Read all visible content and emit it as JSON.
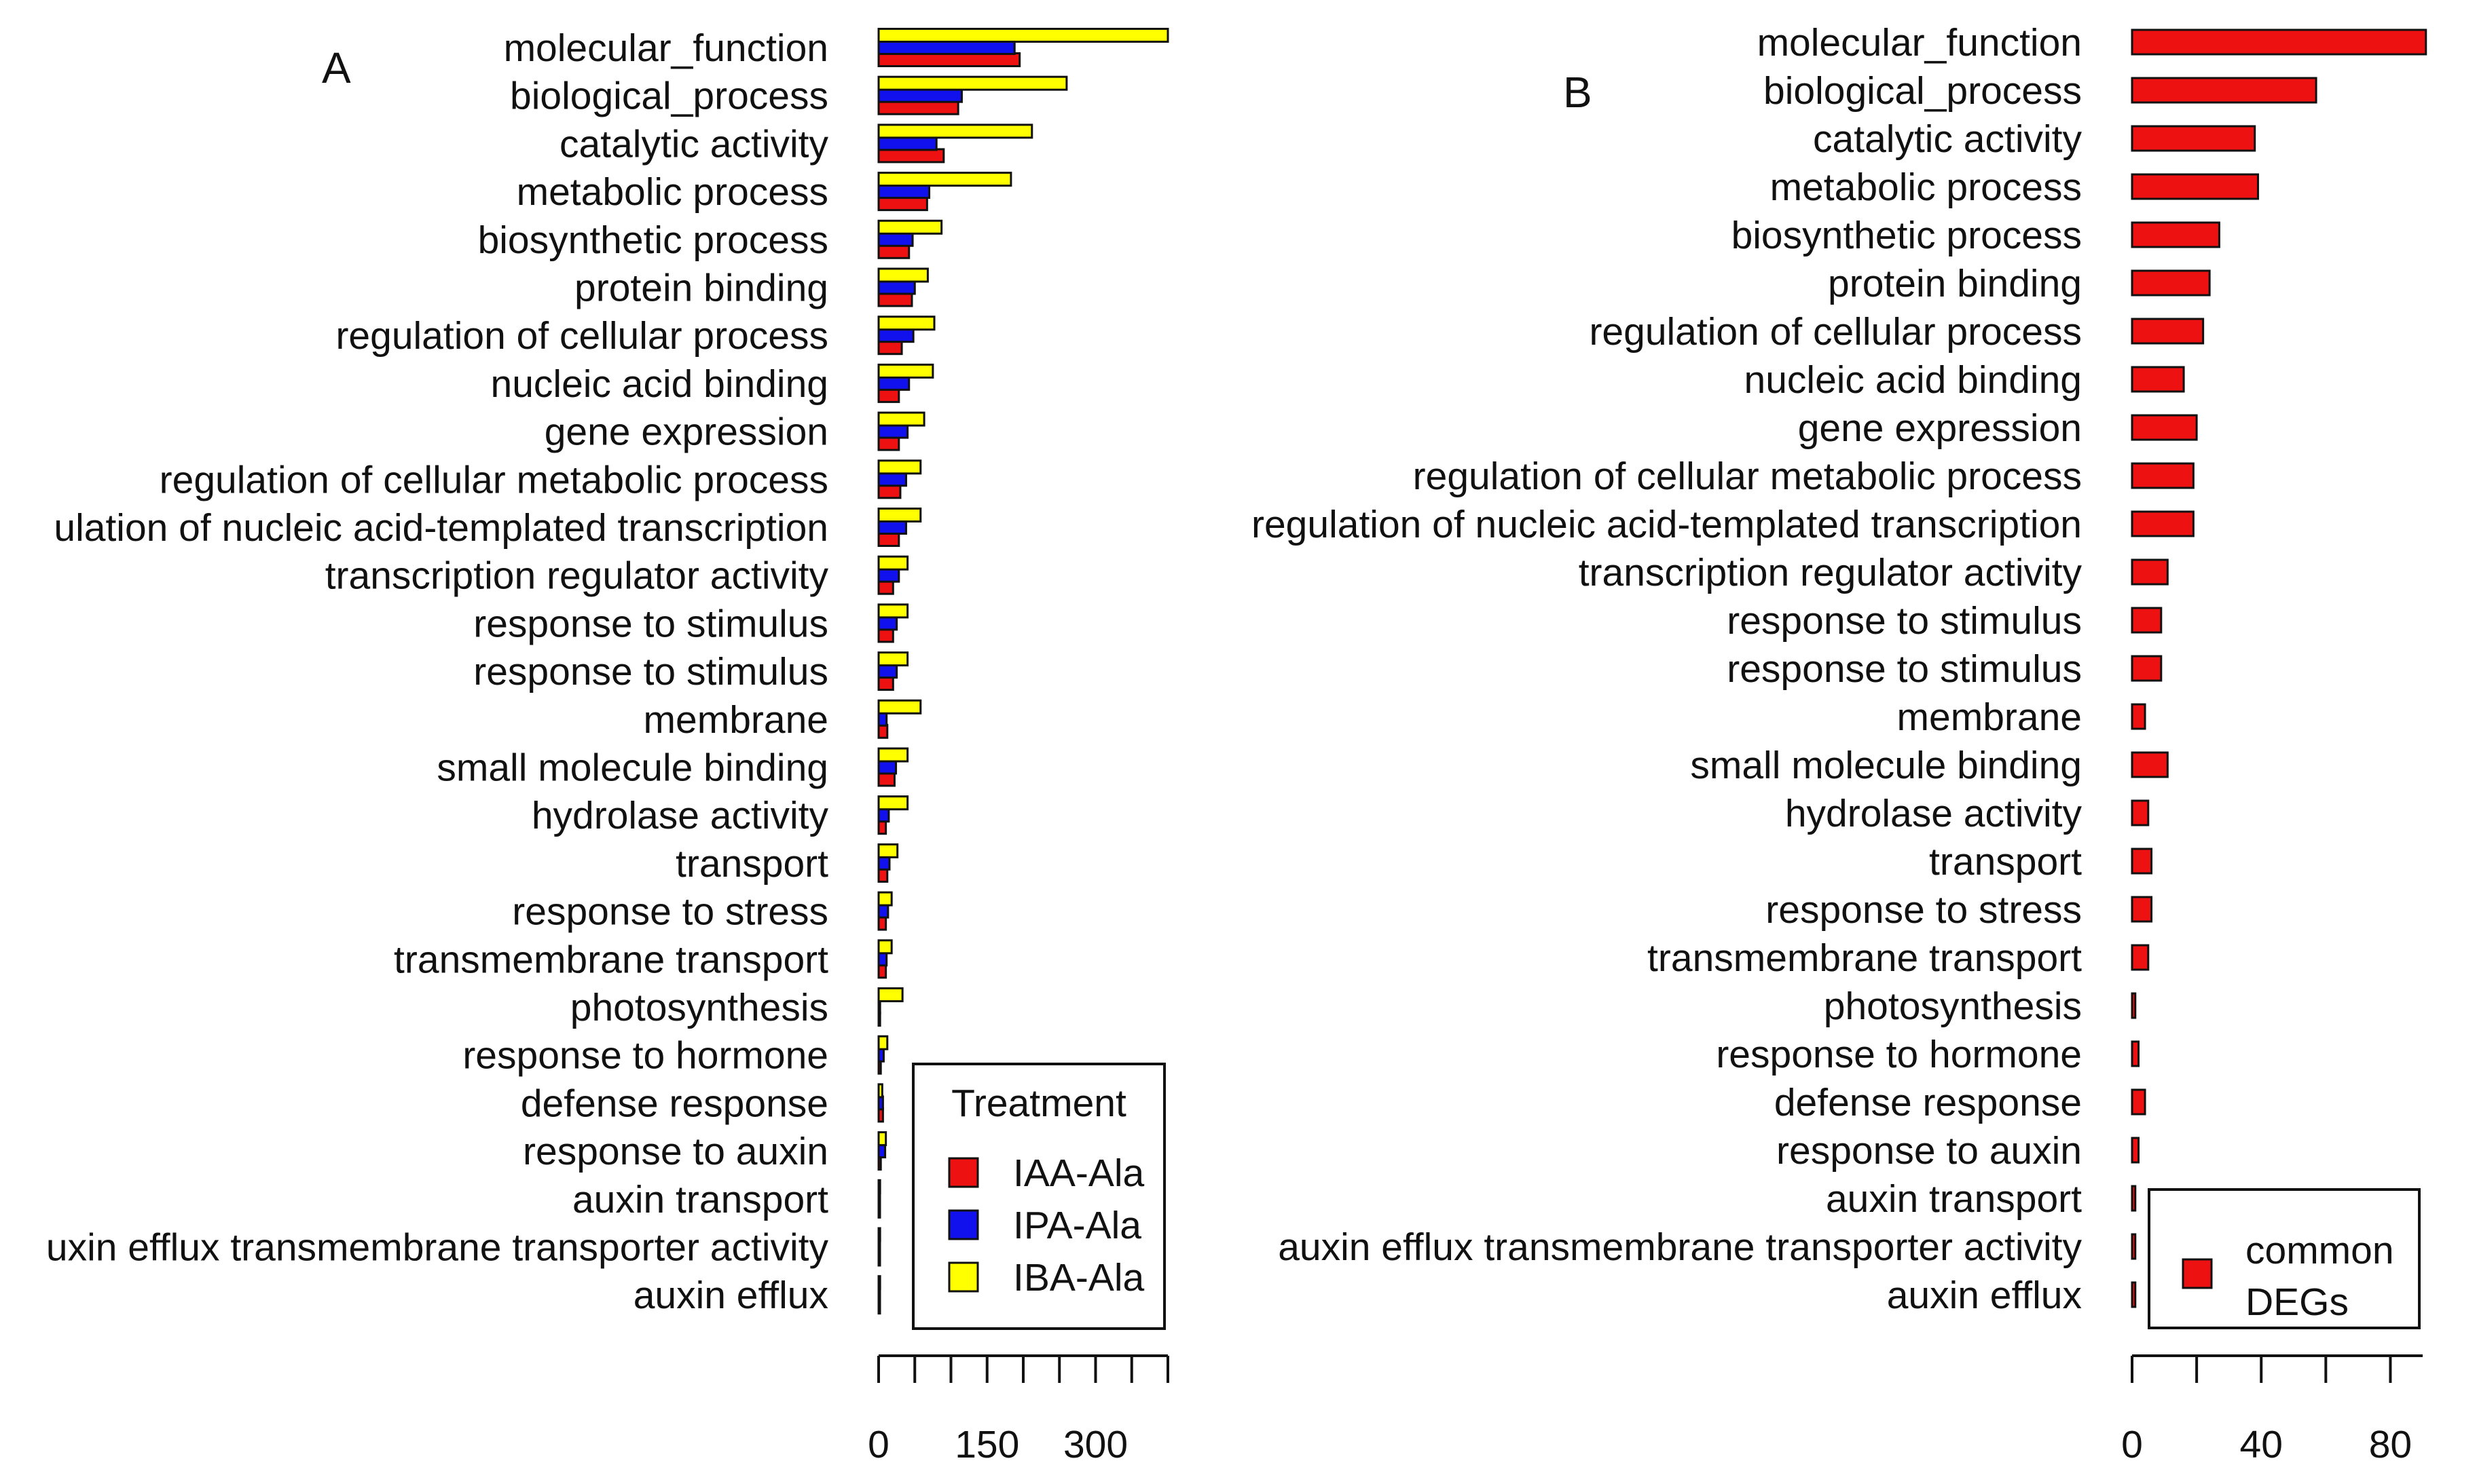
{
  "chart_data": [
    {
      "type": "bar",
      "orientation": "horizontal",
      "panel_label": "A",
      "categories": [
        "molecular_function",
        "biological_process",
        "catalytic activity",
        "metabolic process",
        "biosynthetic process",
        "protein binding",
        "regulation of cellular process",
        "nucleic acid binding",
        "gene expression",
        "regulation of cellular metabolic process",
        "regulation of nucleic acid-templated transcription",
        "transcription regulator activity",
        "response to stimulus",
        "response to stimulus",
        "membrane",
        "small molecule binding",
        "hydrolase activity",
        "transport",
        "response to stress",
        "transmembrane transport",
        "photosynthesis",
        "response to hormone",
        "defense response",
        "response to auxin",
        "auxin transport",
        "auxin efflux transmembrane transporter activity",
        "auxin efflux"
      ],
      "category_labels_shown": [
        "molecular_function",
        "biological_process",
        "catalytic activity",
        "metabolic process",
        "biosynthetic process",
        "protein binding",
        "regulation of cellular process",
        "nucleic acid binding",
        "gene expression",
        "regulation of cellular metabolic process",
        "ulation of nucleic acid-templated transcription",
        "transcription regulator activity",
        "response to stimulus",
        "response to stimulus",
        "membrane",
        "small molecule binding",
        "hydrolase activity",
        "transport",
        "response to stress",
        "transmembrane transport",
        "photosynthesis",
        "response to hormone",
        "defense response",
        "response to auxin",
        "auxin transport",
        "uxin efflux transmembrane transporter activity",
        "auxin efflux"
      ],
      "series": [
        {
          "name": "IAA-Ala",
          "color": "#ee1111",
          "values": [
            195,
            110,
            90,
            67,
            42,
            46,
            32,
            28,
            28,
            30,
            28,
            20,
            20,
            20,
            12,
            22,
            10,
            12,
            10,
            10,
            2,
            3,
            6,
            3,
            1,
            1,
            1
          ]
        },
        {
          "name": "IPA-Ala",
          "color": "#1111ee",
          "values": [
            188,
            115,
            80,
            70,
            47,
            50,
            48,
            42,
            40,
            38,
            38,
            28,
            25,
            25,
            11,
            24,
            14,
            15,
            13,
            11,
            2,
            7,
            6,
            9,
            1,
            1,
            1
          ]
        },
        {
          "name": "IBA-Ala",
          "color": "#ffff00",
          "values": [
            400,
            260,
            212,
            183,
            87,
            68,
            77,
            75,
            63,
            58,
            58,
            40,
            40,
            40,
            58,
            40,
            40,
            26,
            18,
            18,
            33,
            12,
            5,
            10,
            2,
            2,
            2
          ]
        }
      ],
      "xlim": [
        0,
        400
      ],
      "xticks_labeled": [
        0,
        150,
        300
      ],
      "xtick_step": 50,
      "xlabel": "",
      "ylabel": "",
      "legend": {
        "title": "Treatment",
        "position": "bottom-right",
        "entries": [
          "IAA-Ala",
          "IPA-Ala",
          "IBA-Ala"
        ]
      }
    },
    {
      "type": "bar",
      "orientation": "horizontal",
      "panel_label": "B",
      "categories": [
        "molecular_function",
        "biological_process",
        "catalytic activity",
        "metabolic process",
        "biosynthetic process",
        "protein binding",
        "regulation of cellular process",
        "nucleic acid binding",
        "gene expression",
        "regulation of cellular metabolic process",
        "regulation of nucleic acid-templated transcription",
        "transcription regulator activity",
        "response to stimulus",
        "response to stimulus",
        "membrane",
        "small molecule binding",
        "hydrolase activity",
        "transport",
        "response to stress",
        "transmembrane transport",
        "photosynthesis",
        "response to hormone",
        "defense response",
        "response to auxin",
        "auxin transport",
        "auxin efflux transmembrane transporter activity",
        "auxin efflux"
      ],
      "category_labels_shown": [
        "molecular_function",
        "biological_process",
        "catalytic activity",
        "metabolic process",
        "biosynthetic process",
        "protein binding",
        "regulation of cellular process",
        "nucleic acid binding",
        "gene expression",
        "regulation of cellular metabolic process",
        "regulation of nucleic acid-templated transcription",
        "transcription regulator activity",
        "response to stimulus",
        "response to stimulus",
        "membrane",
        "small molecule binding",
        "hydrolase activity",
        "transport",
        "response to stress",
        "transmembrane transport",
        "photosynthesis",
        "response to hormone",
        "defense response",
        "response to auxin",
        "auxin transport",
        "auxin efflux transmembrane transporter activity",
        "auxin efflux"
      ],
      "series": [
        {
          "name": "common DEGs",
          "color": "#ee1111",
          "values": [
            91,
            57,
            38,
            39,
            27,
            24,
            22,
            16,
            20,
            19,
            19,
            11,
            9,
            9,
            4,
            11,
            5,
            6,
            6,
            5,
            1,
            2,
            4,
            2,
            1,
            1,
            1
          ]
        }
      ],
      "xlim": [
        0,
        90
      ],
      "xticks_labeled": [
        0,
        40,
        80
      ],
      "xtick_step": 20,
      "xlabel": "",
      "ylabel": "",
      "legend": {
        "title": "",
        "position": "bottom-right",
        "entries": [
          "common DEGs"
        ],
        "entry_lines": [
          "common",
          "DEGs"
        ]
      }
    }
  ]
}
